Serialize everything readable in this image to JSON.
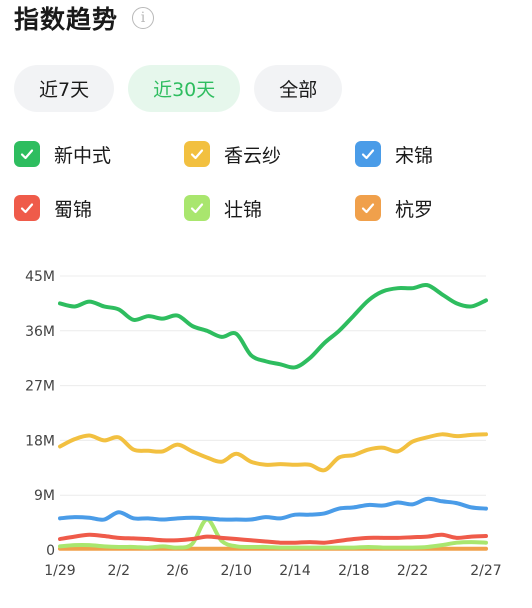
{
  "header": {
    "title": "指数趋势",
    "info_icon": "info-icon"
  },
  "tabs": [
    {
      "label": "近7天",
      "active": false
    },
    {
      "label": "近30天",
      "active": true
    },
    {
      "label": "全部",
      "active": false
    }
  ],
  "legend": [
    {
      "label": "新中式",
      "color": "#2ebd5f",
      "checked": true
    },
    {
      "label": "香云纱",
      "color": "#f2c040",
      "checked": true
    },
    {
      "label": "宋锦",
      "color": "#4a9ce8",
      "checked": true
    },
    {
      "label": "蜀锦",
      "color": "#ef5b4a",
      "checked": true
    },
    {
      "label": "壮锦",
      "color": "#a9e66e",
      "checked": true
    },
    {
      "label": "杭罗",
      "color": "#f0a04b",
      "checked": true
    }
  ],
  "chart_data": {
    "type": "line",
    "x": [
      "1/29",
      "1/30",
      "1/31",
      "2/1",
      "2/2",
      "2/3",
      "2/4",
      "2/5",
      "2/6",
      "2/7",
      "2/8",
      "2/9",
      "2/10",
      "2/11",
      "2/12",
      "2/13",
      "2/14",
      "2/15",
      "2/16",
      "2/17",
      "2/18",
      "2/19",
      "2/20",
      "2/21",
      "2/22",
      "2/23",
      "2/24",
      "2/25",
      "2/26",
      "2/27"
    ],
    "x_tick_labels": [
      "1/29",
      "2/2",
      "2/6",
      "2/10",
      "2/14",
      "2/18",
      "2/22",
      "2/27"
    ],
    "y_tick_labels": [
      "0",
      "9M",
      "18M",
      "27M",
      "36M",
      "45M"
    ],
    "ylim": [
      0,
      45
    ],
    "y_unit": "M",
    "series": [
      {
        "name": "新中式",
        "color": "#2ebd5f",
        "values": [
          40.5,
          40,
          40.8,
          40,
          39.5,
          37.8,
          38.4,
          38,
          38.5,
          36.8,
          36,
          35,
          35.5,
          32,
          31,
          30.5,
          30,
          31.5,
          34,
          36,
          38.5,
          41,
          42.5,
          43,
          43,
          43.5,
          42,
          40.5,
          40,
          41
        ]
      },
      {
        "name": "香云纱",
        "color": "#f2c040",
        "values": [
          17,
          18.2,
          18.8,
          18,
          18.5,
          16.5,
          16.3,
          16.2,
          17.3,
          16.2,
          15.2,
          14.5,
          15.8,
          14.5,
          14,
          14.1,
          14,
          14,
          13.1,
          15.2,
          15.6,
          16.5,
          16.8,
          16.2,
          17.8,
          18.5,
          19,
          18.7,
          18.9,
          19
        ]
      },
      {
        "name": "宋锦",
        "color": "#4a9ce8",
        "values": [
          5.2,
          5.4,
          5.3,
          5,
          6.2,
          5.2,
          5.2,
          5,
          5.2,
          5.3,
          5.2,
          5,
          5,
          5,
          5.4,
          5.2,
          5.8,
          5.8,
          6,
          6.8,
          7,
          7.4,
          7.3,
          7.8,
          7.5,
          8.4,
          8,
          7.7,
          7,
          6.8
        ]
      },
      {
        "name": "蜀锦",
        "color": "#ef5b4a",
        "values": [
          1.8,
          2.2,
          2.5,
          2.3,
          2,
          1.9,
          1.8,
          1.6,
          1.6,
          1.8,
          2.2,
          2,
          1.8,
          1.6,
          1.4,
          1.2,
          1.2,
          1.3,
          1.2,
          1.5,
          1.8,
          2,
          2,
          2,
          2.1,
          2.2,
          2.5,
          2,
          2.2,
          2.3
        ]
      },
      {
        "name": "壮锦",
        "color": "#a9e66e",
        "values": [
          0.6,
          0.8,
          0.8,
          0.6,
          0.5,
          0.5,
          0.4,
          0.6,
          0.4,
          1,
          5,
          1.5,
          0.6,
          0.5,
          0.5,
          0.4,
          0.4,
          0.4,
          0.4,
          0.4,
          0.4,
          0.5,
          0.4,
          0.4,
          0.4,
          0.5,
          0.8,
          1.2,
          1.3,
          1.2
        ]
      },
      {
        "name": "杭罗",
        "color": "#f0a04b",
        "values": [
          0.2,
          0.2,
          0.2,
          0.2,
          0.2,
          0.2,
          0.2,
          0.2,
          0.2,
          0.2,
          0.2,
          0.2,
          0.2,
          0.2,
          0.2,
          0.2,
          0.2,
          0.2,
          0.2,
          0.2,
          0.2,
          0.2,
          0.2,
          0.2,
          0.2,
          0.2,
          0.2,
          0.2,
          0.2,
          0.2
        ]
      }
    ]
  }
}
